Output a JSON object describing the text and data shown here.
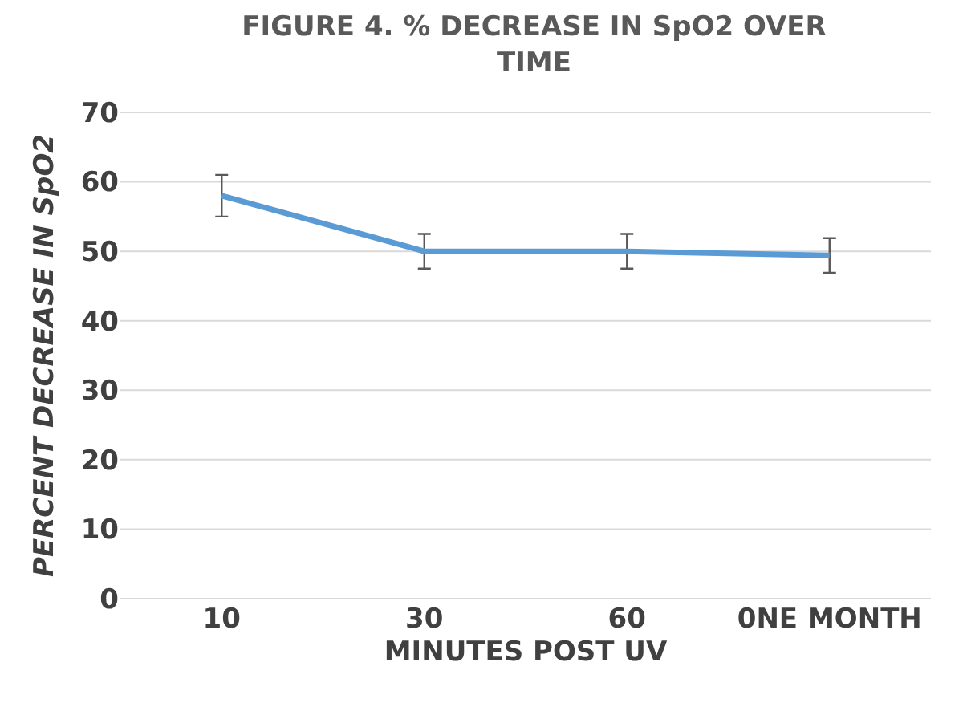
{
  "chart_data": {
    "type": "line",
    "title": "FIGURE 4. % DECREASE IN SpO2 OVER TIME",
    "xlabel": "MINUTES POST UV",
    "ylabel": "PERCENT DECREASE IN SpO2",
    "categories": [
      "10",
      "30",
      "60",
      "0NE MONTH"
    ],
    "series": [
      {
        "color": "#5b9bd5",
        "values": [
          58,
          50,
          50,
          49.4
        ],
        "errors": [
          3,
          2.5,
          2.5,
          2.5
        ]
      }
    ],
    "ylim": [
      0,
      70
    ],
    "yticks": [
      0,
      10,
      20,
      30,
      40,
      50,
      60,
      70
    ],
    "grid": "y",
    "marker": "none",
    "line_style": "solid"
  }
}
